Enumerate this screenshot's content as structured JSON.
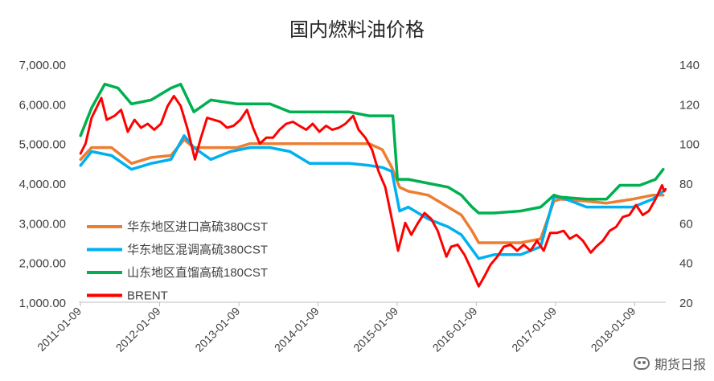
{
  "chart_data": {
    "type": "line",
    "title": "国内燃料油价格",
    "x_ticks": [
      "2011-01-09",
      "2012-01-09",
      "2013-01-09",
      "2014-01-09",
      "2015-01-09",
      "2016-01-09",
      "2017-01-09",
      "2018-01-09"
    ],
    "x_range": [
      "2011-01-01",
      "2018-06-01"
    ],
    "y_left": {
      "ticks": [
        "1,000.00",
        "2,000.00",
        "3,000.00",
        "4,000.00",
        "5,000.00",
        "6,000.00",
        "7,000.00"
      ],
      "range": [
        1000,
        7000
      ]
    },
    "y_right": {
      "ticks": [
        "20",
        "40",
        "60",
        "80",
        "100",
        "120",
        "140"
      ],
      "range": [
        20,
        140
      ]
    },
    "grid": false,
    "legend": "inside-bottom-left",
    "series": [
      {
        "name": "华东地区进口高硫380CST",
        "axis": "left",
        "color": "#ED7D31",
        "points": [
          [
            "2011-01-09",
            4600
          ],
          [
            "2011-03-01",
            4900
          ],
          [
            "2011-06-01",
            4900
          ],
          [
            "2011-09-01",
            4500
          ],
          [
            "2011-12-01",
            4650
          ],
          [
            "2012-03-01",
            4700
          ],
          [
            "2012-05-01",
            5100
          ],
          [
            "2012-06-15",
            4900
          ],
          [
            "2012-09-01",
            4900
          ],
          [
            "2013-01-01",
            4900
          ],
          [
            "2013-03-01",
            5000
          ],
          [
            "2013-06-01",
            5000
          ],
          [
            "2014-06-01",
            5000
          ],
          [
            "2014-09-01",
            5000
          ],
          [
            "2014-11-01",
            4850
          ],
          [
            "2014-12-15",
            4400
          ],
          [
            "2015-01-20",
            3900
          ],
          [
            "2015-03-01",
            3800
          ],
          [
            "2015-06-01",
            3700
          ],
          [
            "2015-09-01",
            3400
          ],
          [
            "2015-11-01",
            3200
          ],
          [
            "2015-12-20",
            2800
          ],
          [
            "2016-01-20",
            2500
          ],
          [
            "2016-04-01",
            2500
          ],
          [
            "2016-08-01",
            2500
          ],
          [
            "2016-11-01",
            2600
          ],
          [
            "2017-01-01",
            3550
          ],
          [
            "2017-02-01",
            3600
          ],
          [
            "2017-06-01",
            3550
          ],
          [
            "2017-09-01",
            3500
          ],
          [
            "2018-01-01",
            3600
          ],
          [
            "2018-04-01",
            3700
          ],
          [
            "2018-05-20",
            3700
          ]
        ]
      },
      {
        "name": "华东地区混调高硫380CST",
        "axis": "left",
        "color": "#00B0F0",
        "points": [
          [
            "2011-01-09",
            4450
          ],
          [
            "2011-03-01",
            4800
          ],
          [
            "2011-06-01",
            4700
          ],
          [
            "2011-09-01",
            4350
          ],
          [
            "2011-12-01",
            4500
          ],
          [
            "2012-03-01",
            4600
          ],
          [
            "2012-05-01",
            5200
          ],
          [
            "2012-06-15",
            4900
          ],
          [
            "2012-09-01",
            4600
          ],
          [
            "2012-12-01",
            4800
          ],
          [
            "2013-03-01",
            4900
          ],
          [
            "2013-06-01",
            4900
          ],
          [
            "2013-09-01",
            4800
          ],
          [
            "2013-12-01",
            4500
          ],
          [
            "2014-03-01",
            4500
          ],
          [
            "2014-06-01",
            4500
          ],
          [
            "2014-09-01",
            4450
          ],
          [
            "2014-11-01",
            4400
          ],
          [
            "2014-12-15",
            4300
          ],
          [
            "2015-01-20",
            3300
          ],
          [
            "2015-03-01",
            3400
          ],
          [
            "2015-06-01",
            3100
          ],
          [
            "2015-09-01",
            2900
          ],
          [
            "2015-11-01",
            2700
          ],
          [
            "2016-01-20",
            2100
          ],
          [
            "2016-04-01",
            2200
          ],
          [
            "2016-08-01",
            2200
          ],
          [
            "2016-11-01",
            2400
          ],
          [
            "2017-01-01",
            3650
          ],
          [
            "2017-02-01",
            3650
          ],
          [
            "2017-06-01",
            3400
          ],
          [
            "2017-09-01",
            3400
          ],
          [
            "2018-01-01",
            3400
          ],
          [
            "2018-04-01",
            3600
          ],
          [
            "2018-05-20",
            3800
          ]
        ]
      },
      {
        "name": "山东地区直馏高硫180CST",
        "axis": "left",
        "color": "#00B050",
        "points": [
          [
            "2011-01-09",
            5200
          ],
          [
            "2011-03-01",
            5900
          ],
          [
            "2011-05-01",
            6500
          ],
          [
            "2011-07-01",
            6400
          ],
          [
            "2011-09-01",
            6000
          ],
          [
            "2011-12-01",
            6100
          ],
          [
            "2012-03-01",
            6400
          ],
          [
            "2012-04-15",
            6500
          ],
          [
            "2012-06-15",
            5800
          ],
          [
            "2012-09-01",
            6100
          ],
          [
            "2013-01-01",
            6000
          ],
          [
            "2013-06-01",
            6000
          ],
          [
            "2013-09-01",
            5800
          ],
          [
            "2014-01-01",
            5800
          ],
          [
            "2014-06-01",
            5800
          ],
          [
            "2014-09-01",
            5700
          ],
          [
            "2014-11-01",
            5700
          ],
          [
            "2014-12-20",
            5700
          ],
          [
            "2015-01-10",
            4100
          ],
          [
            "2015-03-01",
            4100
          ],
          [
            "2015-06-01",
            4000
          ],
          [
            "2015-09-01",
            3900
          ],
          [
            "2015-11-01",
            3700
          ],
          [
            "2015-12-20",
            3400
          ],
          [
            "2016-01-20",
            3250
          ],
          [
            "2016-04-01",
            3250
          ],
          [
            "2016-08-01",
            3300
          ],
          [
            "2016-11-01",
            3400
          ],
          [
            "2017-01-01",
            3700
          ],
          [
            "2017-02-01",
            3650
          ],
          [
            "2017-06-01",
            3600
          ],
          [
            "2017-09-01",
            3600
          ],
          [
            "2017-11-01",
            3950
          ],
          [
            "2018-02-01",
            3950
          ],
          [
            "2018-04-15",
            4100
          ],
          [
            "2018-05-20",
            4350
          ]
        ]
      },
      {
        "name": "BRENT",
        "axis": "right",
        "color": "#FF0000",
        "points": [
          [
            "2011-01-09",
            95
          ],
          [
            "2011-02-01",
            100
          ],
          [
            "2011-03-01",
            113
          ],
          [
            "2011-04-15",
            123
          ],
          [
            "2011-05-10",
            112
          ],
          [
            "2011-06-15",
            114
          ],
          [
            "2011-07-15",
            117
          ],
          [
            "2011-08-15",
            106
          ],
          [
            "2011-09-15",
            112
          ],
          [
            "2011-10-15",
            108
          ],
          [
            "2011-11-15",
            110
          ],
          [
            "2011-12-15",
            107
          ],
          [
            "2012-01-15",
            110
          ],
          [
            "2012-02-15",
            119
          ],
          [
            "2012-03-15",
            124
          ],
          [
            "2012-04-15",
            119
          ],
          [
            "2012-05-15",
            108
          ],
          [
            "2012-06-20",
            92
          ],
          [
            "2012-07-15",
            102
          ],
          [
            "2012-08-15",
            113
          ],
          [
            "2012-09-15",
            112
          ],
          [
            "2012-10-15",
            111
          ],
          [
            "2012-11-15",
            108
          ],
          [
            "2012-12-15",
            109
          ],
          [
            "2013-01-15",
            112
          ],
          [
            "2013-02-15",
            117
          ],
          [
            "2013-03-15",
            108
          ],
          [
            "2013-04-15",
            100
          ],
          [
            "2013-05-15",
            103
          ],
          [
            "2013-06-15",
            103
          ],
          [
            "2013-07-15",
            107
          ],
          [
            "2013-08-15",
            110
          ],
          [
            "2013-09-15",
            111
          ],
          [
            "2013-10-15",
            109
          ],
          [
            "2013-11-15",
            107
          ],
          [
            "2013-12-15",
            110
          ],
          [
            "2014-01-15",
            106
          ],
          [
            "2014-02-15",
            109
          ],
          [
            "2014-03-15",
            107
          ],
          [
            "2014-04-15",
            108
          ],
          [
            "2014-05-15",
            110
          ],
          [
            "2014-06-20",
            114
          ],
          [
            "2014-07-15",
            107
          ],
          [
            "2014-08-15",
            103
          ],
          [
            "2014-09-15",
            97
          ],
          [
            "2014-10-15",
            86
          ],
          [
            "2014-11-15",
            78
          ],
          [
            "2014-12-15",
            62
          ],
          [
            "2015-01-13",
            46
          ],
          [
            "2015-02-15",
            60
          ],
          [
            "2015-03-15",
            54
          ],
          [
            "2015-04-15",
            60
          ],
          [
            "2015-05-15",
            65
          ],
          [
            "2015-06-15",
            62
          ],
          [
            "2015-07-15",
            56
          ],
          [
            "2015-08-24",
            43
          ],
          [
            "2015-09-15",
            48
          ],
          [
            "2015-10-15",
            49
          ],
          [
            "2015-11-15",
            44
          ],
          [
            "2015-12-15",
            37
          ],
          [
            "2016-01-20",
            28
          ],
          [
            "2016-02-15",
            33
          ],
          [
            "2016-03-15",
            39
          ],
          [
            "2016-04-15",
            43
          ],
          [
            "2016-05-15",
            48
          ],
          [
            "2016-06-15",
            49
          ],
          [
            "2016-07-15",
            46
          ],
          [
            "2016-08-15",
            49
          ],
          [
            "2016-09-15",
            46
          ],
          [
            "2016-10-15",
            51
          ],
          [
            "2016-11-15",
            46
          ],
          [
            "2016-12-15",
            55
          ],
          [
            "2017-01-15",
            55
          ],
          [
            "2017-02-15",
            56
          ],
          [
            "2017-03-15",
            52
          ],
          [
            "2017-04-15",
            54
          ],
          [
            "2017-05-15",
            51
          ],
          [
            "2017-06-20",
            45
          ],
          [
            "2017-07-15",
            48
          ],
          [
            "2017-08-15",
            51
          ],
          [
            "2017-09-15",
            56
          ],
          [
            "2017-10-15",
            58
          ],
          [
            "2017-11-15",
            63
          ],
          [
            "2017-12-15",
            64
          ],
          [
            "2018-01-15",
            69
          ],
          [
            "2018-02-15",
            64
          ],
          [
            "2018-03-15",
            66
          ],
          [
            "2018-04-15",
            72
          ],
          [
            "2018-05-15",
            79
          ],
          [
            "2018-05-25",
            76
          ],
          [
            "2018-05-31",
            77
          ]
        ]
      }
    ]
  },
  "watermark": {
    "text": "期货日报",
    "icon": "wechat-icon"
  }
}
